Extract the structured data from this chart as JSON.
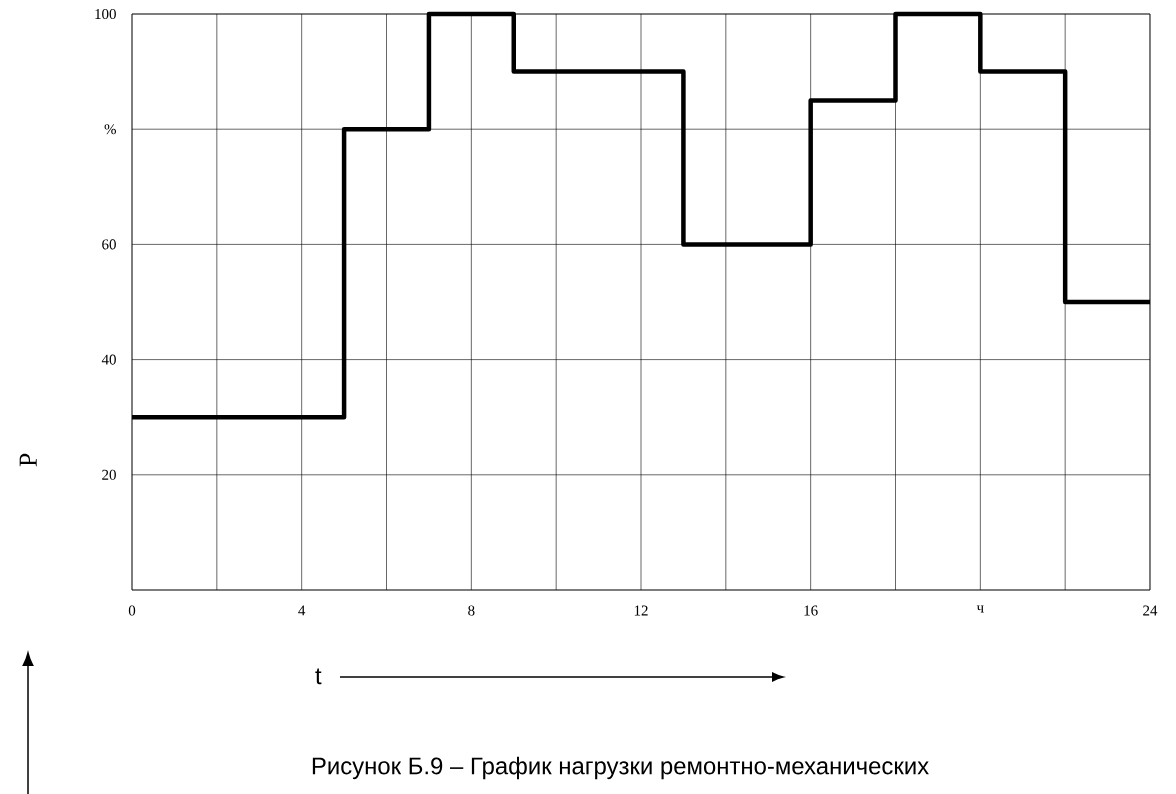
{
  "chart_data": {
    "type": "step",
    "x": [
      0,
      5,
      7,
      9,
      13,
      16,
      18,
      20,
      22,
      24
    ],
    "values": [
      30,
      80,
      100,
      90,
      60,
      85,
      100,
      90,
      50,
      50
    ],
    "color": "#000000",
    "xlabel": "t",
    "ylabel": "P",
    "xlim": [
      0,
      24
    ],
    "ylim": [
      0,
      100
    ],
    "xticks": [
      0,
      {
        "value": 2,
        "label": null
      },
      4,
      {
        "value": 6,
        "label": null
      },
      8,
      {
        "value": 10,
        "label": null
      },
      12,
      {
        "value": 14,
        "label": null
      },
      16,
      {
        "value": 18,
        "label": null
      },
      {
        "value": 20,
        "label": "ч"
      },
      {
        "value": 22,
        "label": null
      },
      24
    ],
    "yticks": [
      {
        "value": 0,
        "label": null
      },
      20,
      40,
      60,
      {
        "value": 80,
        "label": "%"
      },
      100
    ],
    "grid": true,
    "annotations": [
      "Рисунок Б.9 – График нагрузки ремонтно-механических"
    ]
  }
}
